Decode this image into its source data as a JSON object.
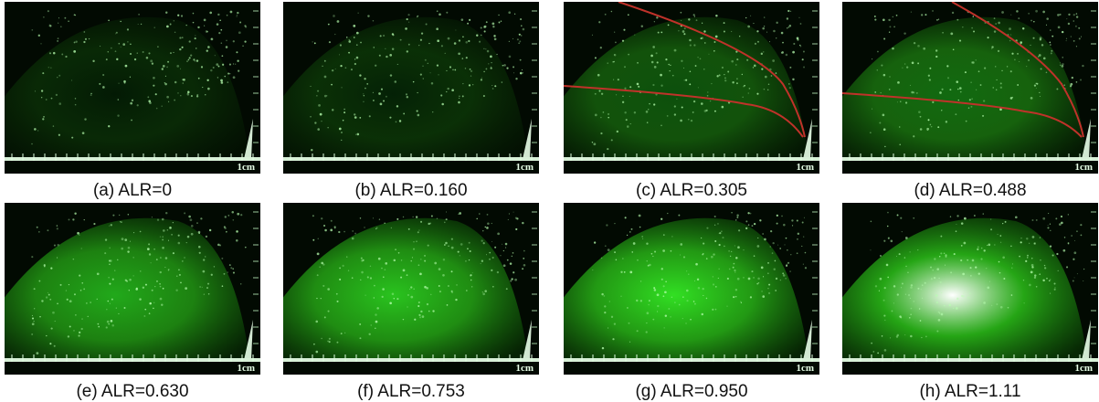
{
  "panels": [
    {
      "caption": "(a)  ALR=0",
      "scale": "1cm"
    },
    {
      "caption": "(b)  ALR=0.160",
      "scale": "1cm"
    },
    {
      "caption": "(c)  ALR=0.305",
      "scale": "1cm"
    },
    {
      "caption": "(d)  ALR=0.488",
      "scale": "1cm"
    },
    {
      "caption": "(e)  ALR=0.630",
      "scale": "1cm"
    },
    {
      "caption": "(f)  ALR=0.753",
      "scale": "1cm"
    },
    {
      "caption": "(g)  ALR=0.950",
      "scale": "1cm"
    },
    {
      "caption": "(h)  ALR=1.11",
      "scale": "1cm"
    }
  ]
}
